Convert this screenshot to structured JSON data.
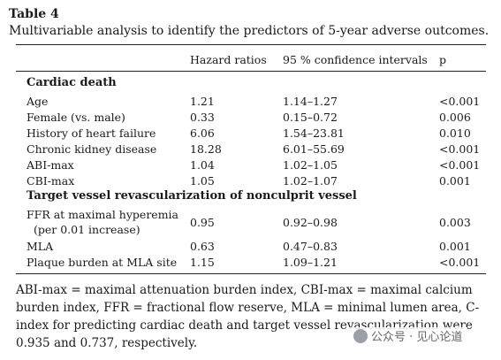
{
  "table_label": "Table 4",
  "caption": "Multivariable analysis to identify the predictors of 5-year adverse outcomes.",
  "columns": [
    "Hazard ratios",
    "95 % confidence intervals",
    "p"
  ],
  "sections": [
    {
      "title": "Cardiac death",
      "rows": [
        {
          "label": "Age",
          "hr": "1.21",
          "ci": "1.14–1.27",
          "p": "<0.001"
        },
        {
          "label": "Female (vs. male)",
          "hr": "0.33",
          "ci": "0.15–0.72",
          "p": "0.006"
        },
        {
          "label": "History of heart failure",
          "hr": "6.06",
          "ci": "1.54–23.81",
          "p": "0.010"
        },
        {
          "label": "Chronic kidney disease",
          "hr": "18.28",
          "ci": "6.01–55.69",
          "p": "<0.001"
        },
        {
          "label": "ABI-max",
          "hr": "1.04",
          "ci": "1.02–1.05",
          "p": "<0.001"
        },
        {
          "label": "CBI-max",
          "hr": "1.05",
          "ci": "1.02–1.07",
          "p": "0.001"
        }
      ]
    },
    {
      "title": "Target vessel revascularization of nonculprit vessel",
      "rows": [
        {
          "label": "FFR at maximal hyperemia",
          "label2": "(per 0.01 increase)",
          "hr": "0.95",
          "ci": "0.92–0.98",
          "p": "0.003"
        },
        {
          "label": "MLA",
          "hr": "0.63",
          "ci": "0.47–0.83",
          "p": "0.001"
        },
        {
          "label": "Plaque burden at MLA site",
          "hr": "1.15",
          "ci": "1.09–1.21",
          "p": "<0.001"
        }
      ]
    }
  ],
  "footnote": "ABI-max = maximal attenuation burden index, CBI-max = maximal calcium burden index, FFR = fractional flow reserve, MLA = minimal lumen area, C-index for predicting cardiac death and target vessel revascularization were 0.935 and 0.737, respectively.",
  "watermark": "公众号 · 见心论道"
}
